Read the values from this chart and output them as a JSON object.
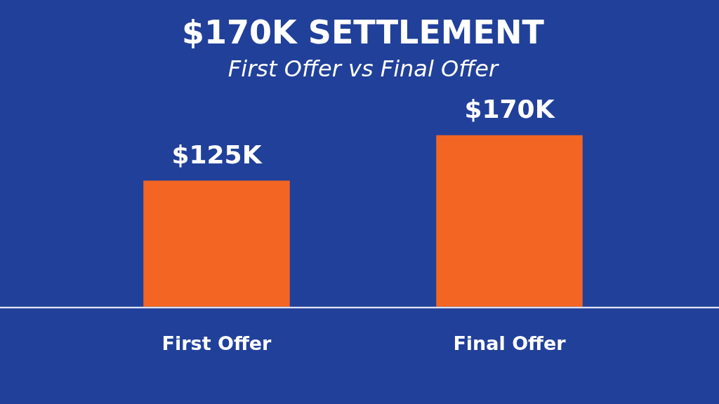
{
  "chart_data": {
    "type": "bar",
    "title": "$170K SETTLEMENT",
    "subtitle": "First Offer vs Final Offer",
    "categories": [
      "First Offer",
      "Final Offer"
    ],
    "values": [
      125,
      170
    ],
    "value_labels": [
      "$125K",
      "$170K"
    ],
    "color": "#f26522",
    "tick_labels": "x",
    "grid": false,
    "legend": false
  }
}
